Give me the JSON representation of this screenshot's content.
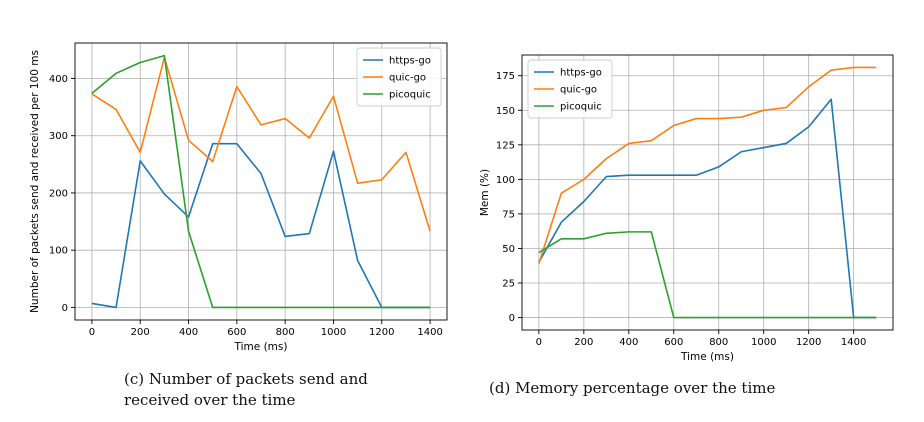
{
  "captions": {
    "left": "(c) Number of packets send and\nreceived over the time",
    "right": "(d) Memory percentage over the time"
  },
  "colors": {
    "https-go": "#1f77b4",
    "quic-go": "#ff7f0e",
    "picoquic": "#2ca02c"
  },
  "chart_data": [
    {
      "type": "line",
      "xlabel": "Time (ms)",
      "ylabel": "Number of packets send and received per 100 ms",
      "xlim": [
        -70,
        1470
      ],
      "ylim": [
        -22,
        462
      ],
      "xticks": [
        0,
        200,
        400,
        600,
        800,
        1000,
        1200,
        1400
      ],
      "yticks": [
        0,
        100,
        200,
        300,
        400
      ],
      "grid": true,
      "legend": "top-right",
      "series": [
        {
          "name": "https-go",
          "x": [
            0,
            100,
            200,
            300,
            400,
            500,
            600,
            700,
            800,
            900,
            1000,
            1100,
            1200,
            1300,
            1400
          ],
          "y": [
            7,
            0,
            256,
            198,
            158,
            286,
            286,
            234,
            124,
            129,
            273,
            82,
            0,
            0,
            0
          ]
        },
        {
          "name": "quic-go",
          "x": [
            0,
            100,
            200,
            300,
            400,
            500,
            600,
            700,
            800,
            900,
            1000,
            1100,
            1200,
            1300,
            1400
          ],
          "y": [
            373,
            346,
            271,
            437,
            292,
            255,
            386,
            319,
            330,
            296,
            369,
            217,
            223,
            271,
            133
          ]
        },
        {
          "name": "picoquic",
          "x": [
            0,
            100,
            200,
            300,
            400,
            500,
            600,
            700,
            800,
            900,
            1000,
            1100,
            1200,
            1300,
            1400
          ],
          "y": [
            374,
            409,
            428,
            440,
            133,
            0,
            0,
            0,
            0,
            0,
            0,
            0,
            0,
            0,
            0
          ]
        }
      ]
    },
    {
      "type": "line",
      "xlabel": "Time (ms)",
      "ylabel": "Mem (%)",
      "xlim": [
        -75,
        1575
      ],
      "ylim": [
        -9,
        190
      ],
      "xticks": [
        0,
        200,
        400,
        600,
        800,
        1000,
        1200,
        1400
      ],
      "yticks": [
        0,
        25,
        50,
        75,
        100,
        125,
        150,
        175
      ],
      "grid": true,
      "legend": "top-left",
      "series": [
        {
          "name": "https-go",
          "x": [
            0,
            100,
            200,
            300,
            400,
            500,
            600,
            700,
            800,
            900,
            1000,
            1100,
            1200,
            1300,
            1400,
            1500
          ],
          "y": [
            40,
            69,
            84,
            102,
            103,
            103,
            103,
            103,
            109,
            120,
            123,
            126,
            138,
            158,
            0,
            0
          ]
        },
        {
          "name": "quic-go",
          "x": [
            0,
            100,
            200,
            300,
            400,
            500,
            600,
            700,
            800,
            900,
            1000,
            1100,
            1200,
            1300,
            1400,
            1500
          ],
          "y": [
            39,
            90,
            100,
            115,
            126,
            128,
            139,
            144,
            144,
            145,
            150,
            152,
            167,
            179,
            181,
            181
          ]
        },
        {
          "name": "picoquic",
          "x": [
            0,
            100,
            200,
            300,
            400,
            500,
            600,
            700,
            800,
            900,
            1000,
            1100,
            1200,
            1300,
            1400,
            1500
          ],
          "y": [
            47,
            57,
            57,
            61,
            62,
            62,
            0,
            0,
            0,
            0,
            0,
            0,
            0,
            0,
            0,
            0
          ]
        }
      ]
    }
  ]
}
